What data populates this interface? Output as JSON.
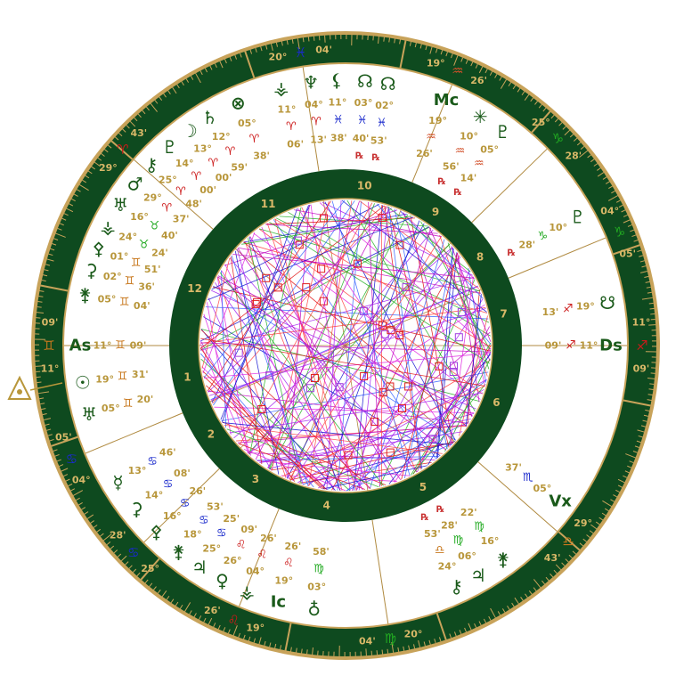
{
  "cusps": [
    {
      "degree": "11°",
      "sign": "♊",
      "minute": "09'"
    },
    {
      "degree": "04°",
      "sign": "♋",
      "minute": "05'"
    },
    {
      "degree": "25°",
      "sign": "♋",
      "minute": "28'"
    },
    {
      "degree": "19°",
      "sign": "♌",
      "minute": "26'"
    },
    {
      "degree": "20°",
      "sign": "♍",
      "minute": "04'"
    },
    {
      "degree": "29°",
      "sign": "♎",
      "minute": "43'"
    },
    {
      "degree": "11°",
      "sign": "♐",
      "minute": "09'"
    },
    {
      "degree": "04°",
      "sign": "♑",
      "minute": "05'"
    },
    {
      "degree": "25°",
      "sign": "♑",
      "minute": "28'"
    },
    {
      "degree": "19°",
      "sign": "♒",
      "minute": "26'"
    },
    {
      "degree": "20°",
      "sign": "♓",
      "minute": "04'"
    },
    {
      "degree": "29°",
      "sign": "♈",
      "minute": "43'"
    }
  ],
  "houses": [
    "1",
    "2",
    "3",
    "4",
    "5",
    "6",
    "7",
    "8",
    "9",
    "10",
    "11",
    "12"
  ],
  "planets": [
    {
      "glyph": "As",
      "degree": "11°",
      "sign": "♊",
      "minute": "09'"
    },
    {
      "glyph": "☉",
      "degree": "19°",
      "sign": "♊",
      "minute": "31'"
    },
    {
      "glyph": "♅",
      "degree": "05°",
      "sign": "♊",
      "minute": "20'"
    },
    {
      "glyph": "☿",
      "degree": "13°",
      "sign": "♋",
      "minute": "46'"
    },
    {
      "glyph": "⚳",
      "degree": "14°",
      "sign": "♋",
      "minute": "08'"
    },
    {
      "glyph": "⚴",
      "degree": "16°",
      "sign": "♋",
      "minute": "26'"
    },
    {
      "glyph": "⚵",
      "degree": "18°",
      "sign": "♋",
      "minute": "53'"
    },
    {
      "glyph": "♃",
      "degree": "25°",
      "sign": "♋",
      "minute": "25'"
    },
    {
      "glyph": "♀",
      "degree": "26°",
      "sign": "♌",
      "minute": "09'"
    },
    {
      "glyph": "⚶",
      "degree": "04°",
      "sign": "♌",
      "minute": "26'"
    },
    {
      "glyph": "Ic",
      "degree": "19°",
      "sign": "♌",
      "minute": "26'"
    },
    {
      "glyph": "♁",
      "degree": "03°",
      "sign": "♍",
      "minute": "58'"
    },
    {
      "glyph": "⚷",
      "degree": "24°",
      "sign": "♎",
      "minute": "53'",
      "retro": "℞"
    },
    {
      "glyph": "♃",
      "degree": "06°",
      "sign": "♍",
      "minute": "28'",
      "retro": "℞"
    },
    {
      "glyph": "⚵",
      "degree": "16°",
      "sign": "♍",
      "minute": "22'"
    },
    {
      "glyph": "Vx",
      "degree": "05°",
      "sign": "♏",
      "minute": "37'"
    },
    {
      "glyph": "Ds",
      "degree": "11°",
      "sign": "♐",
      "minute": "09'"
    },
    {
      "glyph": "☋",
      "degree": "19°",
      "sign": "♐",
      "minute": "13'"
    },
    {
      "glyph": "♇",
      "degree": "10°",
      "sign": "♑",
      "minute": "28'",
      "retro": "℞"
    },
    {
      "glyph": "♇",
      "degree": "05°",
      "sign": "♒",
      "minute": "14'",
      "retro": "℞"
    },
    {
      "glyph": "✳",
      "degree": "10°",
      "sign": "♒",
      "minute": "56'",
      "retro": "℞"
    },
    {
      "glyph": "Mc",
      "degree": "19°",
      "sign": "♒",
      "minute": "26'"
    },
    {
      "glyph": "☊",
      "degree": "02°",
      "sign": "♓",
      "minute": "53'",
      "retro": "℞"
    },
    {
      "glyph": "☊",
      "degree": "03°",
      "sign": "♓",
      "minute": "40'",
      "retro": "℞"
    },
    {
      "glyph": "⚸",
      "degree": "11°",
      "sign": "♓",
      "minute": "38'"
    },
    {
      "glyph": "♆",
      "degree": "04°",
      "sign": "♈",
      "minute": "13'"
    },
    {
      "glyph": "⚶",
      "degree": "11°",
      "sign": "♈",
      "minute": "06'"
    },
    {
      "glyph": "⊗",
      "degree": "05°",
      "sign": "♈",
      "minute": "38'"
    },
    {
      "glyph": "♄",
      "degree": "12°",
      "sign": "♈",
      "minute": "59'"
    },
    {
      "glyph": "☽",
      "degree": "13°",
      "sign": "♈",
      "minute": "00'"
    },
    {
      "glyph": "♇",
      "degree": "14°",
      "sign": "♈",
      "minute": "00'"
    },
    {
      "glyph": "⚷",
      "degree": "25°",
      "sign": "♈",
      "minute": "48'"
    },
    {
      "glyph": "♂",
      "degree": "29°",
      "sign": "♈",
      "minute": "37'"
    },
    {
      "glyph": "♅",
      "degree": "16°",
      "sign": "♉",
      "minute": "40'"
    },
    {
      "glyph": "⚶",
      "degree": "24°",
      "sign": "♉",
      "minute": "24'"
    },
    {
      "glyph": "⚴",
      "degree": "01°",
      "sign": "♊",
      "minute": "51'"
    },
    {
      "glyph": "⚳",
      "degree": "02°",
      "sign": "♊",
      "minute": "36'"
    },
    {
      "glyph": "⚵",
      "degree": "05°",
      "sign": "♊",
      "minute": "04'"
    }
  ]
}
